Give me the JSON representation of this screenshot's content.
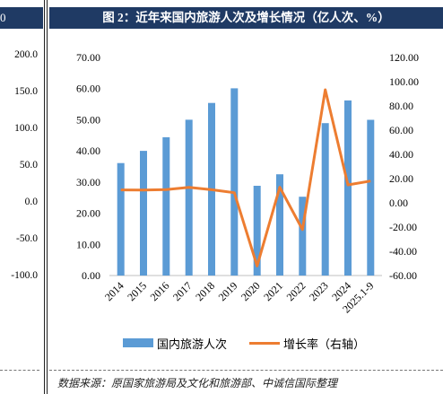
{
  "title": "图 2：近年来国内旅游人次及增长情况（亿人次、%）",
  "left_panel": {
    "header_glyph": "0",
    "ticks": [
      "200.0",
      "150.0",
      "100.0",
      "50.0",
      "0.0",
      "-50.0",
      "-100.0"
    ]
  },
  "chart_data": {
    "type": "bar",
    "categories": [
      "2014",
      "2015",
      "2016",
      "2017",
      "2018",
      "2019",
      "2020",
      "2021",
      "2022",
      "2023",
      "2024",
      "2025.1-9"
    ],
    "series": [
      {
        "name": "国内旅游人次",
        "type": "bar",
        "axis": "left",
        "values": [
          36.1,
          40.0,
          44.4,
          50.0,
          55.4,
          60.1,
          28.8,
          32.5,
          25.3,
          48.9,
          56.2,
          49.98
        ]
      },
      {
        "name": "增长率（右轴）",
        "type": "line",
        "axis": "right",
        "values": [
          10.7,
          10.5,
          11.0,
          12.8,
          10.8,
          8.4,
          -52.1,
          12.8,
          -22.1,
          93.3,
          14.8,
          18.0
        ]
      }
    ],
    "y_left": {
      "ylim": [
        0,
        70
      ],
      "ticks": [
        "0.00",
        "10.00",
        "20.00",
        "30.00",
        "40.00",
        "50.00",
        "60.00",
        "70.00"
      ]
    },
    "y_right": {
      "ylim": [
        -60,
        120
      ],
      "ticks": [
        "-60.00",
        "-40.00",
        "-20.00",
        "0.00",
        "20.00",
        "40.00",
        "60.00",
        "80.00",
        "100.00",
        "120.00"
      ]
    },
    "grid": false,
    "legend_position": "bottom",
    "colors": {
      "bar": "#5b9bd5",
      "line": "#ed7d31"
    }
  },
  "legend": {
    "bar_label": "国内旅游人次",
    "line_label": "增长率（右轴）"
  },
  "source": "数据来源：原国家旅游局及文化和旅游部、中诚信国际整理",
  "colors": {
    "title_bg": "#1f3a64",
    "title_fg": "#ffffff"
  }
}
